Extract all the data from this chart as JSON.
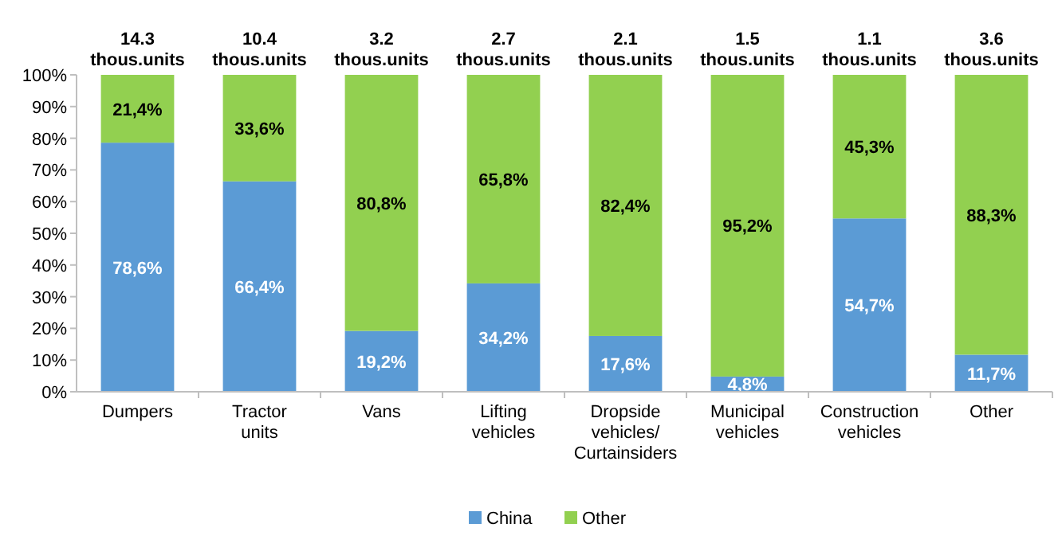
{
  "chart_data": {
    "type": "bar",
    "stacked": true,
    "categories": [
      "Dumpers",
      "Tractor units",
      "Vans",
      "Lifting vehicles",
      "Dropside vehicles/ Curtainsiders",
      "Municipal vehicles",
      "Construction vehicles",
      "Other"
    ],
    "series": [
      {
        "name": "China",
        "color": "#5b9bd5",
        "values": [
          78.6,
          66.4,
          19.2,
          34.2,
          17.6,
          4.8,
          54.7,
          11.7
        ],
        "value_labels": [
          "78,6%",
          "66,4%",
          "19,2%",
          "34,2%",
          "17,6%",
          "4,8%",
          "54,7%",
          "11,7%"
        ]
      },
      {
        "name": "Other",
        "color": "#92d050",
        "values": [
          21.4,
          33.6,
          80.8,
          65.8,
          82.4,
          95.2,
          45.3,
          88.3
        ],
        "value_labels": [
          "21,4%",
          "33,6%",
          "80,8%",
          "65,8%",
          "82,4%",
          "95,2%",
          "45,3%",
          "88,3%"
        ]
      }
    ],
    "annotations": [
      "14.3 thous.units",
      "10.4 thous.units",
      "3.2 thous.units",
      "2.7 thous.units",
      "2.1 thous.units",
      "1.5 thous.units",
      "1.1 thous.units",
      "3.6 thous.units"
    ],
    "ylim": [
      0,
      100
    ],
    "yticks": [
      {
        "value": 0,
        "label": "0%"
      },
      {
        "value": 10,
        "label": "10%"
      },
      {
        "value": 20,
        "label": "20%"
      },
      {
        "value": 30,
        "label": "30%"
      },
      {
        "value": 40,
        "label": "40%"
      },
      {
        "value": 50,
        "label": "50%"
      },
      {
        "value": 60,
        "label": "60%"
      },
      {
        "value": 70,
        "label": "70%"
      },
      {
        "value": 80,
        "label": "80%"
      },
      {
        "value": 90,
        "label": "90%"
      },
      {
        "value": 100,
        "label": "100%"
      }
    ],
    "grid": false,
    "legend": "bottom"
  }
}
